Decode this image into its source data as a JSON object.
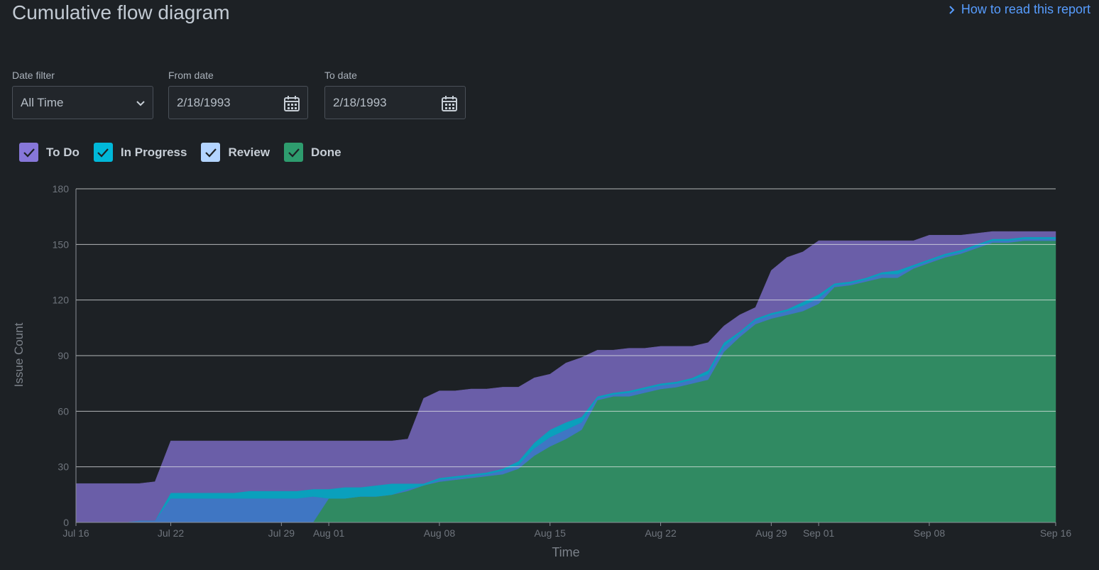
{
  "header": {
    "title": "Cumulative flow diagram",
    "help_link": "How to read this report"
  },
  "filters": [
    {
      "label": "Date filter",
      "value": "All Time"
    },
    {
      "label": "From date",
      "value": "2/18/1993"
    },
    {
      "label": "To date",
      "value": "2/18/1993"
    }
  ],
  "chart_data": {
    "type": "area",
    "stacked": true,
    "x": [
      "Jul 16",
      "Jul 17",
      "Jul 18",
      "Jul 19",
      "Jul 20",
      "Jul 21",
      "Jul 22",
      "Jul 23",
      "Jul 24",
      "Jul 25",
      "Jul 26",
      "Jul 27",
      "Jul 28",
      "Jul 29",
      "Jul 30",
      "Jul 31",
      "Aug 01",
      "Aug 02",
      "Aug 03",
      "Aug 04",
      "Aug 05",
      "Aug 06",
      "Aug 07",
      "Aug 08",
      "Aug 09",
      "Aug 10",
      "Aug 11",
      "Aug 12",
      "Aug 13",
      "Aug 14",
      "Aug 15",
      "Aug 16",
      "Aug 17",
      "Aug 18",
      "Aug 19",
      "Aug 20",
      "Aug 21",
      "Aug 22",
      "Aug 23",
      "Aug 24",
      "Aug 25",
      "Aug 26",
      "Aug 27",
      "Aug 28",
      "Aug 29",
      "Aug 30",
      "Aug 31",
      "Sep 01",
      "Sep 02",
      "Sep 03",
      "Sep 04",
      "Sep 05",
      "Sep 06",
      "Sep 07",
      "Sep 08",
      "Sep 09",
      "Sep 10",
      "Sep 11",
      "Sep 12",
      "Sep 13",
      "Sep 14",
      "Sep 15",
      "Sep 16"
    ],
    "series": [
      {
        "name": "To Do",
        "color": "#6a5ea8",
        "legend_color": "#8777d9",
        "values": [
          21,
          21,
          21,
          21,
          20,
          21,
          28,
          28,
          28,
          28,
          28,
          27,
          27,
          27,
          27,
          26,
          26,
          25,
          25,
          24,
          23,
          24,
          46,
          47,
          46,
          46,
          45,
          44,
          40,
          35,
          30,
          32,
          32,
          25,
          23,
          23,
          21,
          20,
          19,
          17,
          15,
          9,
          9,
          6,
          23,
          28,
          27,
          29,
          23,
          22,
          20,
          17,
          16,
          13,
          13,
          10,
          8,
          6,
          4,
          4,
          3,
          3,
          3
        ]
      },
      {
        "name": "In Progress",
        "color": "#0aa0bc",
        "legend_color": "#00b8d9",
        "values": [
          0,
          0,
          0,
          0,
          0,
          0,
          3,
          3,
          3,
          3,
          3,
          4,
          4,
          4,
          4,
          4,
          5,
          6,
          5,
          6,
          6,
          3,
          1,
          1,
          1,
          1,
          1,
          1,
          2,
          3,
          4,
          4,
          3,
          1,
          1,
          1,
          1,
          1,
          1,
          1,
          2,
          2,
          1,
          1,
          1,
          1,
          2,
          2,
          1,
          1,
          1,
          1,
          2,
          1,
          1,
          1,
          1,
          1,
          1,
          1,
          1,
          1,
          1
        ]
      },
      {
        "name": "Review",
        "color": "#3f76c3",
        "legend_color": "#b3d4ff",
        "values": [
          0,
          0,
          0,
          0,
          1,
          1,
          13,
          13,
          13,
          13,
          13,
          13,
          13,
          13,
          13,
          14,
          0,
          0,
          0,
          0,
          0,
          1,
          0,
          1,
          1,
          1,
          1,
          2,
          2,
          4,
          5,
          5,
          4,
          1,
          1,
          2,
          2,
          2,
          2,
          2,
          3,
          3,
          2,
          2,
          2,
          2,
          3,
          3,
          1,
          1,
          1,
          2,
          2,
          1,
          1,
          1,
          1,
          1,
          1,
          1,
          1,
          1,
          1
        ]
      },
      {
        "name": "Done",
        "color": "#308a62",
        "legend_color": "#2e9c6e",
        "values": [
          0,
          0,
          0,
          0,
          0,
          0,
          0,
          0,
          0,
          0,
          0,
          0,
          0,
          0,
          0,
          0,
          13,
          13,
          14,
          14,
          15,
          17,
          20,
          22,
          23,
          24,
          25,
          26,
          29,
          36,
          41,
          45,
          50,
          66,
          68,
          68,
          70,
          72,
          73,
          75,
          77,
          92,
          100,
          107,
          110,
          112,
          114,
          118,
          127,
          128,
          130,
          132,
          132,
          137,
          140,
          143,
          145,
          148,
          151,
          151,
          152,
          152,
          152
        ]
      }
    ],
    "xlim": [
      "Jul 16",
      "Sep 16"
    ],
    "xticks": [
      "Jul 16",
      "Jul 22",
      "Jul 29",
      "Aug 01",
      "Aug 08",
      "Aug 15",
      "Aug 22",
      "Aug 29",
      "Sep 01",
      "Sep 08",
      "Sep 16"
    ],
    "ylim": [
      0,
      180
    ],
    "yticks": [
      0,
      30,
      60,
      90,
      120,
      150,
      180
    ],
    "x_label": "Time",
    "y_label": "Issue Count",
    "grid": true
  }
}
